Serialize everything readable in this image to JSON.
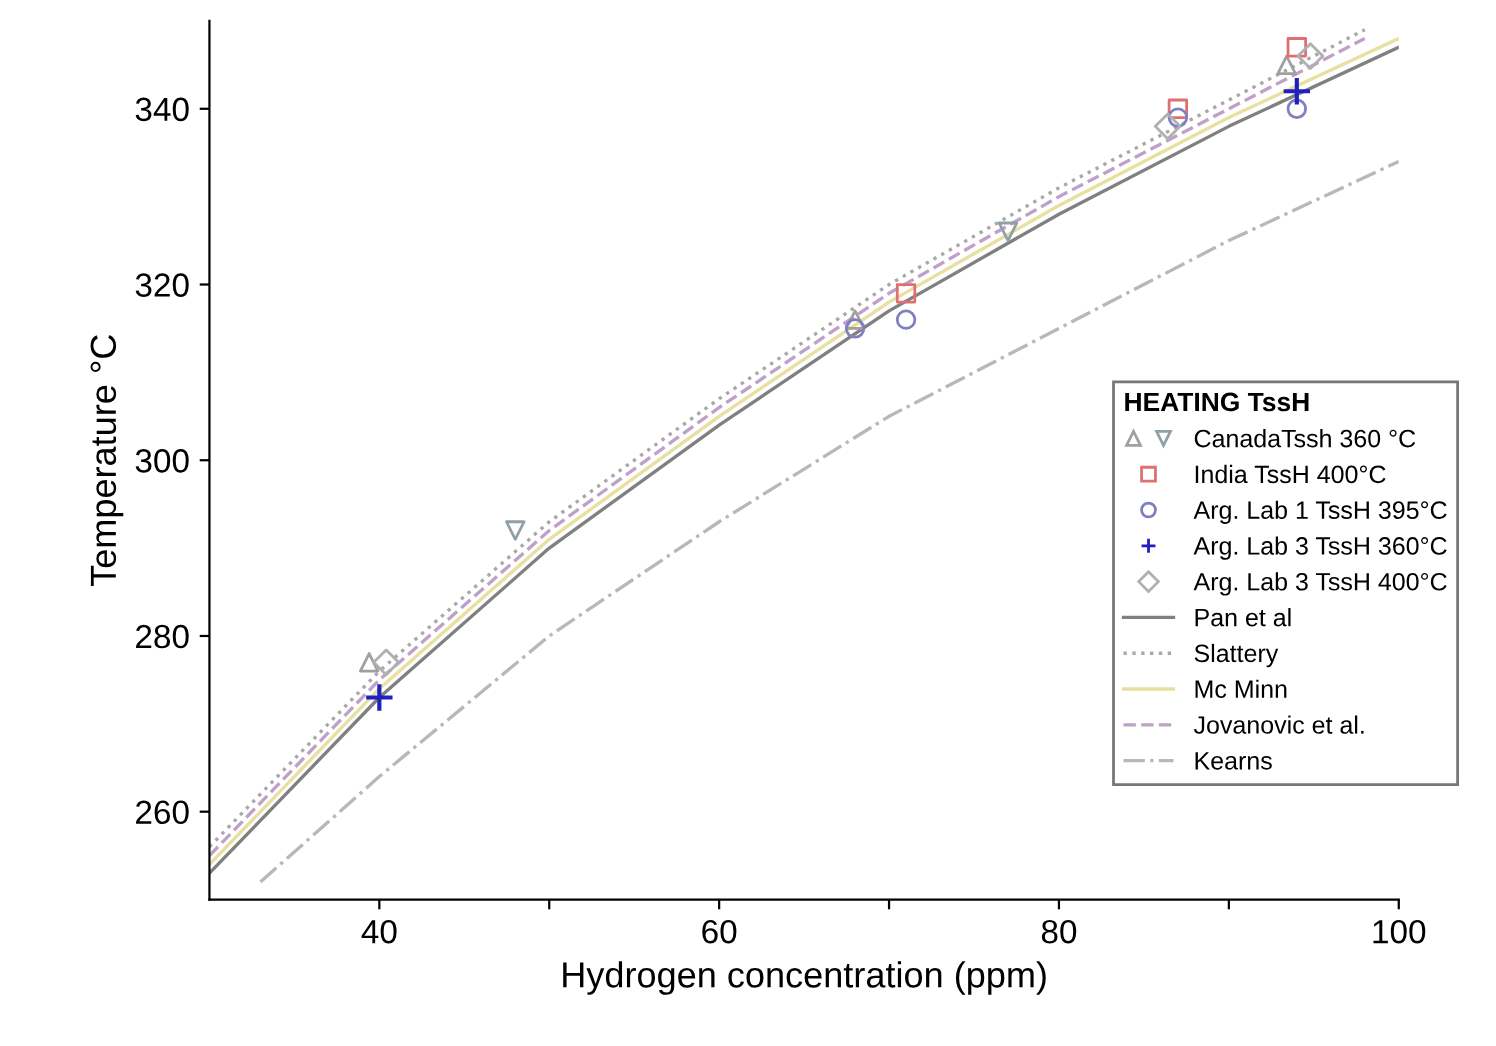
{
  "chart_data": {
    "type": "scatter",
    "xlabel": "Hydrogen concentration (ppm)",
    "ylabel": "Temperature °C",
    "legend_title": "HEATING TssH",
    "legend": "right",
    "grid": false,
    "xlim": [
      30,
      100
    ],
    "ylim": [
      250,
      350
    ],
    "xticks": [
      40,
      {
        "value": 50,
        "label": null
      },
      60,
      {
        "value": 70,
        "label": null
      },
      80,
      {
        "value": 90,
        "label": null
      },
      100
    ],
    "yticks": [
      260,
      280,
      300,
      320,
      340
    ],
    "series": [
      {
        "marker": "triangle",
        "color": "#a0a0a0",
        "x": [
          39.4,
          68,
          93.4
        ],
        "values": [
          277,
          316,
          345
        ]
      },
      {
        "marker": "triangle_down",
        "name": "CanadaTssh 360 °C",
        "color": "#90a0a8",
        "x": [
          48,
          77
        ],
        "values": [
          292,
          326
        ]
      },
      {
        "marker": "square",
        "name": "India TssH 400°C",
        "color": "#e07070",
        "x": [
          71,
          87,
          94
        ],
        "values": [
          319,
          340,
          347
        ]
      },
      {
        "marker": "circle",
        "name": "Arg. Lab 1 TssH 395°C",
        "color": "#8080c0",
        "x": [
          68,
          71,
          87,
          94
        ],
        "values": [
          315,
          316,
          339,
          340
        ]
      },
      {
        "marker": "cross",
        "name": "Arg. Lab 3 TssH 360°C",
        "color": "#2020c0",
        "x": [
          40,
          94
        ],
        "values": [
          273,
          342
        ]
      },
      {
        "marker": "diamond",
        "name": "Arg. Lab 3 TssH 400°C",
        "color": "#b0b0b0",
        "x": [
          40.4,
          86.4,
          94.8
        ],
        "values": [
          277,
          338,
          346
        ]
      },
      {
        "type": "line",
        "name": "Pan et al",
        "color": "#808080",
        "line_style": "solid",
        "x": [
          30,
          40,
          50,
          60,
          70,
          80,
          90,
          100
        ],
        "values": [
          253,
          273,
          290,
          304,
          317,
          328,
          338,
          347
        ]
      },
      {
        "type": "line",
        "name": "Slattery",
        "color": "#a8a8a8",
        "line_style": "dotted",
        "x": [
          30,
          40,
          50,
          60,
          70,
          80,
          90,
          98
        ],
        "values": [
          256,
          276,
          293,
          307,
          320,
          331,
          341,
          349
        ]
      },
      {
        "type": "line",
        "name": "Mc Minn",
        "color": "#e8e0a0",
        "line_style": "solid",
        "x": [
          30,
          40,
          50,
          60,
          70,
          80,
          90,
          100
        ],
        "values": [
          254,
          274,
          291,
          305,
          318,
          329,
          339,
          348
        ]
      },
      {
        "type": "line",
        "name": "Jovanovic et al.",
        "color": "#c0a0c8",
        "line_style": "dashed",
        "x": [
          30,
          40,
          50,
          60,
          70,
          80,
          90,
          98
        ],
        "values": [
          255,
          275,
          292,
          306,
          319,
          330,
          340,
          348
        ]
      },
      {
        "type": "line",
        "name": "Kearns",
        "color": "#b8b8b8",
        "line_style": "dashdot",
        "x": [
          33,
          40,
          50,
          60,
          70,
          80,
          90,
          100
        ],
        "values": [
          252,
          264,
          280,
          293,
          305,
          315,
          325,
          334
        ]
      }
    ]
  }
}
